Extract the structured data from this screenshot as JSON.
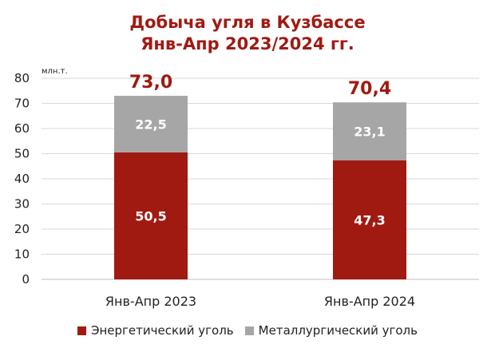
{
  "colors": {
    "energy": "#a01a12",
    "metal": "#a6a6a6",
    "title": "#a01a12",
    "grid": "#d9d9d9"
  },
  "chart_data": {
    "type": "bar",
    "stacked": true,
    "title": "Добыча угля в Кузбассе",
    "subtitle": "Янв-Апр 2023/2024 гг.",
    "unit_label": "млн.т.",
    "categories": [
      "Янв-Апр 2023",
      "Янв-Апр 2024"
    ],
    "series": [
      {
        "name": "Энергетический уголь",
        "values": [
          50.5,
          47.3
        ],
        "labels": [
          "50,5",
          "47,3"
        ]
      },
      {
        "name": "Металлургический уголь",
        "values": [
          22.5,
          23.1
        ],
        "labels": [
          "22,5",
          "23,1"
        ]
      }
    ],
    "totals": [
      73.0,
      70.4
    ],
    "total_labels": [
      "73,0",
      "70,4"
    ],
    "ylim": [
      0,
      80
    ],
    "yticks": [
      0,
      10,
      20,
      30,
      40,
      50,
      60,
      70,
      80
    ],
    "grid": true,
    "legend": "bottom"
  }
}
